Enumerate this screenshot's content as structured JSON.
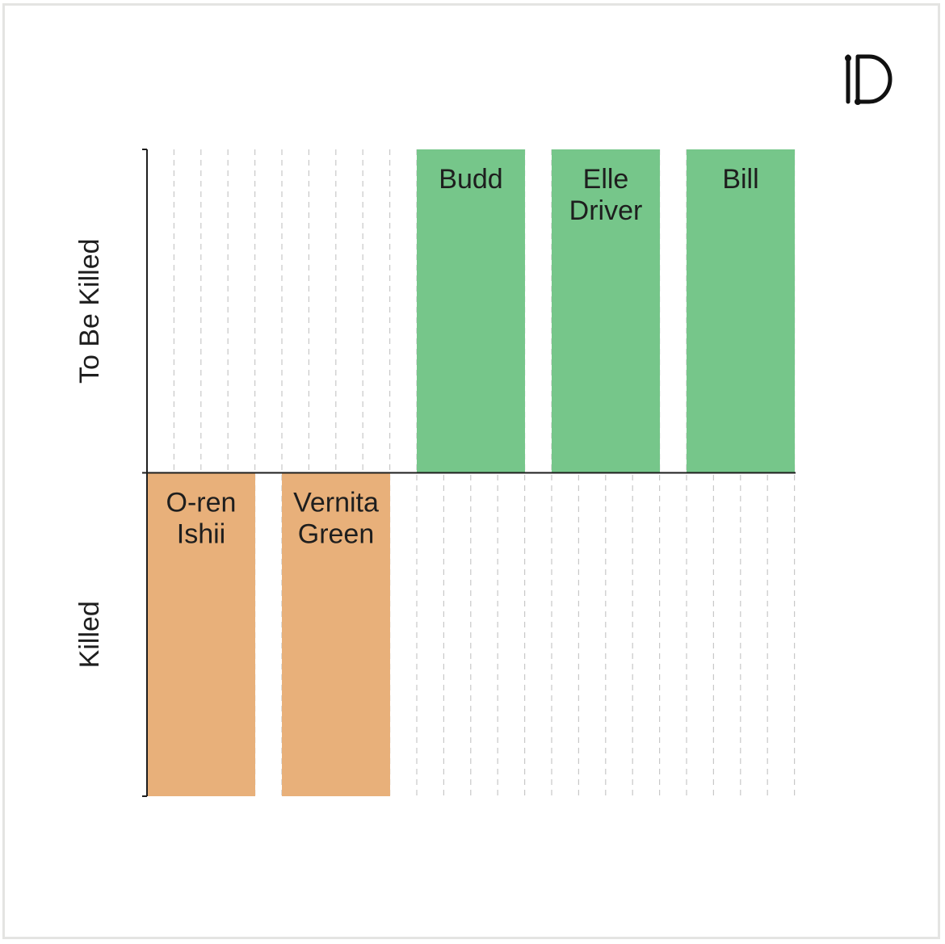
{
  "chart_data": {
    "type": "bar",
    "categories": [
      "O-ren Ishii",
      "Vernita Green",
      "Budd",
      "Elle Driver",
      "Bill"
    ],
    "bar_labels": [
      [
        "O-ren",
        "Ishii"
      ],
      [
        "Vernita",
        "Green"
      ],
      [
        "Budd"
      ],
      [
        "Elle",
        "Driver"
      ],
      [
        "Bill"
      ]
    ],
    "values": [
      -1,
      -1,
      1,
      1,
      1
    ],
    "ylim": [
      -1,
      1
    ],
    "y_categories": [
      "To Be Killed",
      "Killed"
    ],
    "grid": true,
    "colors": {
      "positive": "#76c68a",
      "negative": "#e8b07a",
      "grid": "#c8c8c8",
      "axis": "#1e1e1e"
    }
  },
  "brand": {
    "logo": "D-logo"
  }
}
